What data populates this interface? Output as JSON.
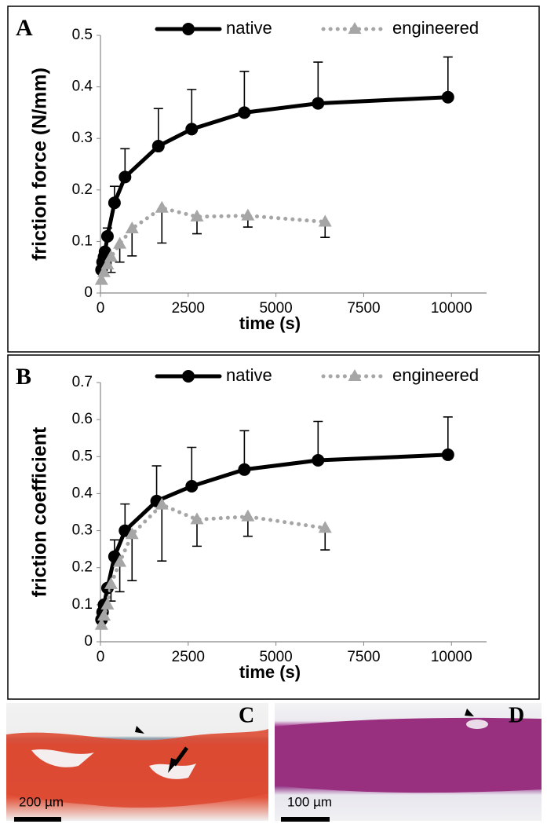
{
  "chart_data": [
    {
      "type": "line",
      "panel_label": "A",
      "x_label": "time (s)",
      "y_label": "friction force (N/mm)",
      "xlim": [
        0,
        11000
      ],
      "xticks": [
        0,
        2500,
        5000,
        7500,
        10000
      ],
      "ylim": [
        0,
        0.5
      ],
      "yticks": [
        0,
        0.1,
        0.2,
        0.3,
        0.4,
        0.5
      ],
      "legend": "top",
      "series": [
        {
          "name": "native",
          "color": "#000000",
          "marker": "circle",
          "line_style": "solid",
          "error_direction": "up",
          "x": [
            30,
            60,
            100,
            130,
            200,
            400,
            700,
            1650,
            2600,
            4100,
            6200,
            9900
          ],
          "values": [
            0.045,
            0.06,
            0.07,
            0.08,
            0.11,
            0.175,
            0.225,
            0.285,
            0.318,
            0.35,
            0.368,
            0.38
          ],
          "errors": [
            null,
            null,
            null,
            null,
            0.016,
            0.032,
            0.055,
            0.073,
            0.077,
            0.08,
            0.08,
            0.078
          ]
        },
        {
          "name": "engineered",
          "color": "#a6a6a6",
          "marker": "triangle",
          "line_style": "dotted",
          "error_direction": "down",
          "x": [
            30,
            100,
            200,
            300,
            550,
            900,
            1750,
            2750,
            4200,
            6400
          ],
          "values": [
            0.025,
            0.04,
            0.055,
            0.07,
            0.095,
            0.125,
            0.165,
            0.148,
            0.15,
            0.138
          ],
          "errors": [
            null,
            null,
            null,
            0.03,
            0.035,
            0.053,
            0.068,
            0.033,
            0.022,
            0.03
          ]
        }
      ]
    },
    {
      "type": "line",
      "panel_label": "B",
      "x_label": "time (s)",
      "y_label": "friction coefficient",
      "xlim": [
        0,
        11000
      ],
      "xticks": [
        0,
        2500,
        5000,
        7500,
        10000
      ],
      "ylim": [
        0,
        0.7
      ],
      "yticks": [
        0,
        0.1,
        0.2,
        0.3,
        0.4,
        0.5,
        0.6,
        0.7
      ],
      "legend": "top",
      "series": [
        {
          "name": "native",
          "color": "#000000",
          "marker": "circle",
          "line_style": "solid",
          "error_direction": "up",
          "x": [
            30,
            60,
            100,
            200,
            400,
            700,
            1600,
            2600,
            4100,
            6200,
            9900
          ],
          "values": [
            0.06,
            0.08,
            0.1,
            0.145,
            0.23,
            0.3,
            0.38,
            0.42,
            0.465,
            0.49,
            0.505
          ],
          "errors": [
            null,
            null,
            null,
            null,
            0.045,
            0.072,
            0.095,
            0.105,
            0.105,
            0.105,
            0.102
          ]
        },
        {
          "name": "engineered",
          "color": "#a6a6a6",
          "marker": "triangle",
          "line_style": "dotted",
          "error_direction": "down",
          "x": [
            30,
            100,
            200,
            300,
            550,
            900,
            1750,
            2750,
            4200,
            6400
          ],
          "values": [
            0.045,
            0.07,
            0.1,
            0.155,
            0.215,
            0.29,
            0.37,
            0.33,
            0.338,
            0.307
          ],
          "errors": [
            null,
            null,
            null,
            0.045,
            0.08,
            0.125,
            0.152,
            0.072,
            0.053,
            0.059
          ]
        }
      ]
    }
  ],
  "images": [
    {
      "label": "C",
      "scale_bar": "200 µm"
    },
    {
      "label": "D",
      "scale_bar": "100 µm"
    }
  ]
}
